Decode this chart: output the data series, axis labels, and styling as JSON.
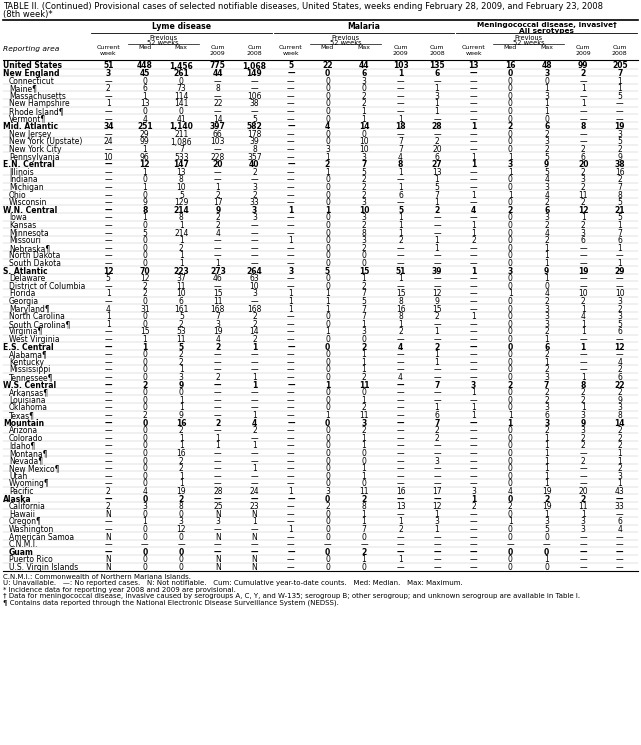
{
  "title_line1": "TABLE II. (Continued) Provisional cases of selected notifiable diseases, United States, weeks ending February 28, 2009, and February 23, 2008",
  "title_line2": "(8th week)*",
  "rows": [
    [
      "United States",
      "51",
      "448",
      "1,456",
      "775",
      "1,068",
      "5",
      "22",
      "44",
      "103",
      "135",
      "13",
      "16",
      "48",
      "99",
      "205"
    ],
    [
      "New England",
      "3",
      "45",
      "261",
      "44",
      "149",
      "—",
      "0",
      "6",
      "1",
      "6",
      "—",
      "0",
      "3",
      "2",
      "7"
    ],
    [
      "Connecticut",
      "—",
      "0",
      "0",
      "—",
      "—",
      "—",
      "0",
      "3",
      "—",
      "—",
      "—",
      "0",
      "0",
      "—",
      "1"
    ],
    [
      "Maine¶",
      "2",
      "6",
      "73",
      "8",
      "—",
      "—",
      "0",
      "0",
      "—",
      "1",
      "—",
      "0",
      "1",
      "1",
      "1"
    ],
    [
      "Massachusetts",
      "—",
      "1",
      "114",
      "—",
      "106",
      "—",
      "0",
      "2",
      "—",
      "3",
      "—",
      "0",
      "3",
      "—",
      "5"
    ],
    [
      "New Hampshire",
      "1",
      "13",
      "141",
      "22",
      "38",
      "—",
      "0",
      "2",
      "—",
      "1",
      "—",
      "0",
      "1",
      "1",
      "—"
    ],
    [
      "Rhode Island¶",
      "—",
      "0",
      "0",
      "—",
      "—",
      "—",
      "0",
      "1",
      "—",
      "1",
      "—",
      "0",
      "1",
      "—",
      "—"
    ],
    [
      "Vermont¶",
      "—",
      "4",
      "41",
      "14",
      "5",
      "—",
      "0",
      "1",
      "1",
      "—",
      "—",
      "0",
      "0",
      "—",
      "—"
    ],
    [
      "Mid. Atlantic",
      "34",
      "251",
      "1,140",
      "397",
      "582",
      "—",
      "4",
      "14",
      "18",
      "28",
      "1",
      "2",
      "6",
      "8",
      "19"
    ],
    [
      "New Jersey",
      "—",
      "29",
      "211",
      "66",
      "178",
      "—",
      "0",
      "0",
      "—",
      "—",
      "—",
      "0",
      "2",
      "—",
      "3"
    ],
    [
      "New York (Upstate)",
      "24",
      "99",
      "1,086",
      "103",
      "39",
      "—",
      "0",
      "10",
      "7",
      "2",
      "—",
      "0",
      "3",
      "—",
      "5"
    ],
    [
      "New York City",
      "—",
      "1",
      "7",
      "—",
      "8",
      "—",
      "3",
      "10",
      "7",
      "20",
      "—",
      "0",
      "2",
      "2",
      "2"
    ],
    [
      "Pennsylvania",
      "10",
      "96",
      "533",
      "228",
      "357",
      "—",
      "1",
      "3",
      "4",
      "6",
      "1",
      "1",
      "5",
      "6",
      "9"
    ],
    [
      "E.N. Central",
      "—",
      "12",
      "147",
      "20",
      "40",
      "—",
      "2",
      "7",
      "8",
      "27",
      "1",
      "3",
      "9",
      "20",
      "38"
    ],
    [
      "Illinois",
      "—",
      "1",
      "13",
      "—",
      "2",
      "—",
      "1",
      "5",
      "1",
      "13",
      "—",
      "1",
      "5",
      "2",
      "16"
    ],
    [
      "Indiana",
      "—",
      "0",
      "8",
      "—",
      "—",
      "—",
      "0",
      "2",
      "—",
      "1",
      "—",
      "0",
      "4",
      "3",
      "2"
    ],
    [
      "Michigan",
      "—",
      "1",
      "10",
      "1",
      "3",
      "—",
      "0",
      "2",
      "1",
      "5",
      "—",
      "0",
      "3",
      "2",
      "7"
    ],
    [
      "Ohio",
      "—",
      "0",
      "5",
      "2",
      "2",
      "—",
      "0",
      "2",
      "6",
      "7",
      "1",
      "1",
      "4",
      "11",
      "8"
    ],
    [
      "Wisconsin",
      "—",
      "9",
      "129",
      "17",
      "33",
      "—",
      "0",
      "3",
      "—",
      "1",
      "—",
      "0",
      "2",
      "2",
      "5"
    ],
    [
      "W.N. Central",
      "—",
      "8",
      "214",
      "9",
      "3",
      "1",
      "1",
      "10",
      "5",
      "2",
      "4",
      "2",
      "6",
      "12",
      "21"
    ],
    [
      "Iowa",
      "—",
      "1",
      "8",
      "2",
      "3",
      "—",
      "0",
      "3",
      "1",
      "—",
      "—",
      "0",
      "3",
      "1",
      "5"
    ],
    [
      "Kansas",
      "—",
      "0",
      "1",
      "2",
      "—",
      "—",
      "0",
      "2",
      "1",
      "—",
      "1",
      "0",
      "2",
      "2",
      "1"
    ],
    [
      "Minnesota",
      "—",
      "5",
      "214",
      "4",
      "—",
      "—",
      "0",
      "8",
      "1",
      "—",
      "1",
      "0",
      "4",
      "3",
      "7"
    ],
    [
      "Missouri",
      "—",
      "0",
      "1",
      "—",
      "—",
      "1",
      "0",
      "3",
      "2",
      "1",
      "2",
      "0",
      "2",
      "6",
      "6"
    ],
    [
      "Nebraska¶",
      "—",
      "0",
      "2",
      "—",
      "—",
      "—",
      "0",
      "2",
      "—",
      "1",
      "—",
      "0",
      "1",
      "—",
      "1"
    ],
    [
      "North Dakota",
      "—",
      "0",
      "1",
      "—",
      "—",
      "—",
      "0",
      "0",
      "—",
      "—",
      "—",
      "0",
      "1",
      "—",
      "—"
    ],
    [
      "South Dakota",
      "—",
      "0",
      "1",
      "1",
      "—",
      "—",
      "0",
      "0",
      "—",
      "—",
      "—",
      "0",
      "1",
      "—",
      "1"
    ],
    [
      "S. Atlantic",
      "12",
      "70",
      "223",
      "273",
      "264",
      "3",
      "5",
      "15",
      "51",
      "39",
      "1",
      "3",
      "9",
      "19",
      "29"
    ],
    [
      "Delaware",
      "5",
      "12",
      "37",
      "46",
      "63",
      "—",
      "0",
      "1",
      "1",
      "—",
      "—",
      "0",
      "1",
      "—",
      "—"
    ],
    [
      "District of Columbia",
      "—",
      "2",
      "11",
      "—",
      "10",
      "—",
      "0",
      "2",
      "—",
      "—",
      "—",
      "0",
      "0",
      "—",
      "—"
    ],
    [
      "Florida",
      "1",
      "2",
      "10",
      "15",
      "3",
      "1",
      "1",
      "7",
      "15",
      "12",
      "—",
      "1",
      "4",
      "10",
      "10"
    ],
    [
      "Georgia",
      "—",
      "0",
      "6",
      "11",
      "—",
      "1",
      "1",
      "5",
      "8",
      "9",
      "—",
      "0",
      "2",
      "2",
      "3"
    ],
    [
      "Maryland¶",
      "4",
      "31",
      "161",
      "168",
      "168",
      "1",
      "1",
      "7",
      "16",
      "15",
      "—",
      "0",
      "3",
      "1",
      "2"
    ],
    [
      "North Carolina",
      "1",
      "0",
      "5",
      "7",
      "2",
      "—",
      "0",
      "7",
      "8",
      "2",
      "1",
      "0",
      "3",
      "4",
      "3"
    ],
    [
      "South Carolina¶",
      "1",
      "0",
      "2",
      "3",
      "2",
      "—",
      "0",
      "1",
      "1",
      "—",
      "—",
      "0",
      "3",
      "1",
      "5"
    ],
    [
      "Virginia¶",
      "—",
      "15",
      "53",
      "19",
      "14",
      "—",
      "1",
      "3",
      "2",
      "1",
      "—",
      "0",
      "2",
      "1",
      "6"
    ],
    [
      "West Virginia",
      "—",
      "1",
      "11",
      "4",
      "2",
      "—",
      "0",
      "0",
      "—",
      "—",
      "—",
      "0",
      "1",
      "—",
      "—"
    ],
    [
      "E.S. Central",
      "—",
      "1",
      "5",
      "2",
      "1",
      "—",
      "0",
      "2",
      "4",
      "2",
      "—",
      "0",
      "6",
      "1",
      "12"
    ],
    [
      "Alabama¶",
      "—",
      "0",
      "2",
      "—",
      "—",
      "—",
      "0",
      "1",
      "—",
      "1",
      "—",
      "0",
      "2",
      "—",
      "—"
    ],
    [
      "Kentucky",
      "—",
      "0",
      "2",
      "—",
      "—",
      "—",
      "0",
      "1",
      "—",
      "1",
      "—",
      "0",
      "1",
      "—",
      "4"
    ],
    [
      "Mississippi",
      "—",
      "0",
      "1",
      "—",
      "—",
      "—",
      "0",
      "1",
      "—",
      "—",
      "—",
      "0",
      "2",
      "—",
      "2"
    ],
    [
      "Tennessee¶",
      "—",
      "0",
      "3",
      "2",
      "1",
      "—",
      "0",
      "2",
      "4",
      "—",
      "—",
      "0",
      "3",
      "1",
      "6"
    ],
    [
      "W.S. Central",
      "—",
      "2",
      "9",
      "—",
      "1",
      "—",
      "1",
      "11",
      "—",
      "7",
      "3",
      "2",
      "7",
      "8",
      "22"
    ],
    [
      "Arkansas¶",
      "—",
      "0",
      "0",
      "—",
      "—",
      "—",
      "0",
      "0",
      "—",
      "—",
      "1",
      "0",
      "2",
      "2",
      "2"
    ],
    [
      "Louisiana",
      "—",
      "0",
      "1",
      "—",
      "—",
      "—",
      "0",
      "1",
      "—",
      "—",
      "—",
      "0",
      "2",
      "2",
      "9"
    ],
    [
      "Oklahoma",
      "—",
      "0",
      "1",
      "—",
      "—",
      "—",
      "0",
      "2",
      "—",
      "1",
      "1",
      "0",
      "3",
      "1",
      "3"
    ],
    [
      "Texas¶",
      "—",
      "2",
      "9",
      "—",
      "1",
      "—",
      "1",
      "11",
      "—",
      "6",
      "1",
      "1",
      "6",
      "3",
      "8"
    ],
    [
      "Mountain",
      "—",
      "0",
      "16",
      "2",
      "4",
      "—",
      "0",
      "3",
      "—",
      "7",
      "—",
      "1",
      "3",
      "9",
      "14"
    ],
    [
      "Arizona",
      "—",
      "0",
      "2",
      "—",
      "2",
      "—",
      "0",
      "2",
      "—",
      "2",
      "—",
      "0",
      "2",
      "3",
      "2"
    ],
    [
      "Colorado",
      "—",
      "0",
      "1",
      "1",
      "—",
      "—",
      "0",
      "1",
      "—",
      "2",
      "—",
      "0",
      "1",
      "2",
      "2"
    ],
    [
      "Idaho¶",
      "—",
      "0",
      "1",
      "1",
      "1",
      "—",
      "0",
      "1",
      "—",
      "—",
      "—",
      "0",
      "1",
      "2",
      "2"
    ],
    [
      "Montana¶",
      "—",
      "0",
      "16",
      "—",
      "—",
      "—",
      "0",
      "0",
      "—",
      "—",
      "—",
      "0",
      "1",
      "—",
      "1"
    ],
    [
      "Nevada¶",
      "—",
      "0",
      "2",
      "—",
      "—",
      "—",
      "0",
      "0",
      "—",
      "3",
      "—",
      "0",
      "1",
      "2",
      "1"
    ],
    [
      "New Mexico¶",
      "—",
      "0",
      "2",
      "—",
      "1",
      "—",
      "0",
      "1",
      "—",
      "—",
      "—",
      "0",
      "1",
      "—",
      "2"
    ],
    [
      "Utah",
      "—",
      "0",
      "1",
      "—",
      "—",
      "—",
      "0",
      "1",
      "—",
      "—",
      "—",
      "0",
      "1",
      "—",
      "3"
    ],
    [
      "Wyoming¶",
      "—",
      "0",
      "1",
      "—",
      "—",
      "—",
      "0",
      "0",
      "—",
      "—",
      "—",
      "0",
      "1",
      "—",
      "1"
    ],
    [
      "Pacific",
      "2",
      "4",
      "19",
      "28",
      "24",
      "1",
      "3",
      "11",
      "16",
      "17",
      "3",
      "4",
      "19",
      "20",
      "43"
    ],
    [
      "Alaska",
      "—",
      "0",
      "2",
      "—",
      "—",
      "—",
      "0",
      "2",
      "—",
      "—",
      "1",
      "0",
      "2",
      "2",
      "—"
    ],
    [
      "California",
      "2",
      "3",
      "8",
      "25",
      "23",
      "—",
      "2",
      "8",
      "13",
      "12",
      "2",
      "2",
      "19",
      "11",
      "33"
    ],
    [
      "Hawaii",
      "N",
      "0",
      "0",
      "N",
      "N",
      "—",
      "0",
      "1",
      "—",
      "1",
      "—",
      "0",
      "1",
      "1",
      "—"
    ],
    [
      "Oregon¶",
      "—",
      "1",
      "3",
      "3",
      "1",
      "—",
      "0",
      "1",
      "1",
      "3",
      "—",
      "1",
      "3",
      "3",
      "6"
    ],
    [
      "Washington",
      "—",
      "0",
      "12",
      "—",
      "—",
      "1",
      "0",
      "7",
      "2",
      "1",
      "—",
      "0",
      "5",
      "3",
      "4"
    ],
    [
      "American Samoa",
      "N",
      "0",
      "0",
      "N",
      "N",
      "—",
      "0",
      "0",
      "—",
      "—",
      "—",
      "0",
      "0",
      "—",
      "—"
    ],
    [
      "C.N.M.I.",
      "—",
      "—",
      "—",
      "—",
      "—",
      "—",
      "—",
      "—",
      "—",
      "—",
      "—",
      "—",
      "—",
      "—",
      "—"
    ],
    [
      "Guam",
      "—",
      "0",
      "0",
      "—",
      "—",
      "—",
      "0",
      "2",
      "—",
      "—",
      "—",
      "0",
      "0",
      "—",
      "—"
    ],
    [
      "Puerto Rico",
      "N",
      "0",
      "0",
      "N",
      "N",
      "—",
      "0",
      "1",
      "1",
      "—",
      "—",
      "0",
      "1",
      "—",
      "—"
    ],
    [
      "U.S. Virgin Islands",
      "N",
      "0",
      "0",
      "N",
      "N",
      "—",
      "0",
      "0",
      "—",
      "—",
      "—",
      "0",
      "0",
      "—",
      "—"
    ]
  ],
  "bold_rows": [
    0,
    1,
    8,
    13,
    19,
    27,
    37,
    42,
    47,
    57,
    64
  ],
  "indent_rows": [
    2,
    3,
    4,
    5,
    6,
    7,
    9,
    10,
    11,
    12,
    14,
    15,
    16,
    17,
    18,
    20,
    21,
    22,
    23,
    24,
    25,
    26,
    28,
    29,
    30,
    31,
    32,
    33,
    34,
    35,
    36,
    38,
    39,
    40,
    41,
    43,
    44,
    45,
    46,
    48,
    49,
    50,
    51,
    52,
    53,
    54,
    55,
    56,
    58,
    59,
    60,
    61,
    62,
    63,
    64,
    65,
    66,
    67,
    68,
    69
  ],
  "footnotes": [
    "C.N.M.I.: Commonwealth of Northern Mariana Islands.",
    "U: Unavailable.   —: No reported cases.   N: Not notifiable.   Cum: Cumulative year-to-date counts.   Med: Median.   Max: Maximum.",
    "* Incidence data for reporting year 2008 and 2009 are provisional.",
    "† Data for meningococcal disease, invasive caused by serogroups A, C, Y, and W-135; serogroup B; other serogroup; and unknown serogroup are available in Table I.",
    "¶ Contains data reported through the National Electronic Disease Surveillance System (NEDSS)."
  ]
}
